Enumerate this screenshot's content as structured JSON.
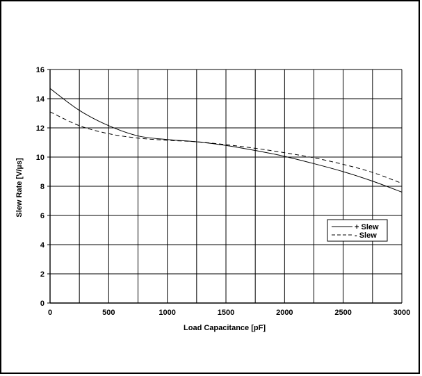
{
  "chart_data": {
    "type": "line",
    "title": "",
    "xlabel": "Load Capacitance [pF]",
    "ylabel": "Slew Rate [V/µs]",
    "xlim": [
      0,
      3000
    ],
    "ylim": [
      0,
      16
    ],
    "x_ticks": [
      "0",
      "500",
      "1000",
      "1500",
      "2000",
      "2500",
      "3000"
    ],
    "y_ticks": [
      "0",
      "2",
      "4",
      "6",
      "8",
      "10",
      "12",
      "14",
      "16"
    ],
    "grid": true,
    "legend_position": "right",
    "series": [
      {
        "name": "+ Slew",
        "style": "solid",
        "x": [
          0,
          250,
          500,
          750,
          1000,
          1250,
          1500,
          1750,
          2000,
          2250,
          2500,
          2750,
          3000
        ],
        "y": [
          14.7,
          13.2,
          12.15,
          11.45,
          11.2,
          11.05,
          10.8,
          10.45,
          10.05,
          9.55,
          9.0,
          8.35,
          7.6
        ]
      },
      {
        "name": "- Slew",
        "style": "dashed",
        "x": [
          0,
          250,
          500,
          750,
          1000,
          1250,
          1500,
          1750,
          2000,
          2250,
          2500,
          2750,
          3000
        ],
        "y": [
          13.1,
          12.15,
          11.6,
          11.3,
          11.15,
          11.05,
          10.85,
          10.6,
          10.3,
          9.95,
          9.5,
          8.95,
          8.2
        ]
      }
    ]
  }
}
